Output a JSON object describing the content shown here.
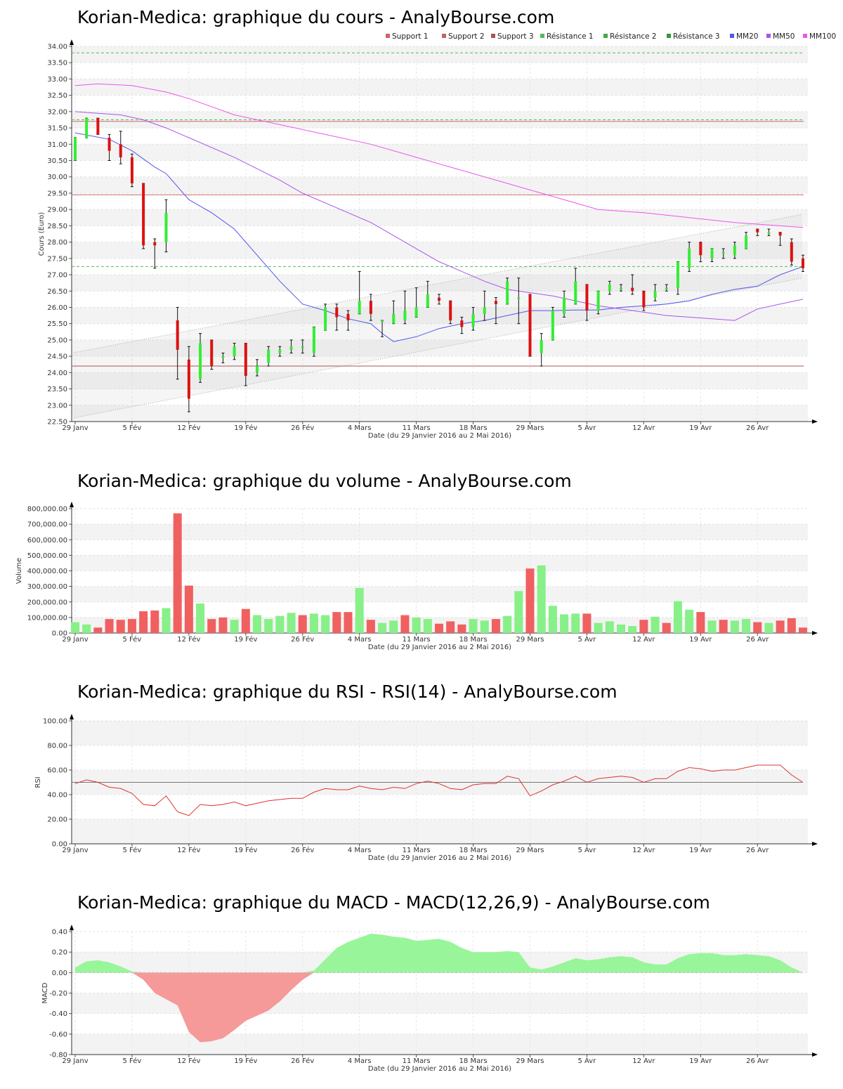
{
  "titles": {
    "price": "Korian-Medica: graphique du cours - AnalyBourse.com",
    "volume": "Korian-Medica: graphique du volume - AnalyBourse.com",
    "rsi": "Korian-Medica: graphique du RSI - RSI(14) - AnalyBourse.com",
    "macd": "Korian-Medica: graphique du MACD - MACD(12,26,9) - AnalyBourse.com"
  },
  "xlabel": "Date (du 29 Janvier 2016 au 2 Mai 2016)",
  "colors": {
    "up": "#33ee33",
    "down": "#dd1111",
    "vol_up": "#88f088",
    "vol_down": "#f06060",
    "support": "#cc6666",
    "resistance": "#55bb55",
    "mm20": "#5555ee",
    "mm50": "#aa55ee",
    "mm100": "#ee55ee",
    "rsi": "#dd3333",
    "macd_pos": "#99f599",
    "macd_neg": "#f59999"
  },
  "chart_data": [
    {
      "id": "price",
      "type": "candlestick",
      "title": "Korian-Medica: graphique du cours - AnalyBourse.com",
      "xlabel": "Date (du 29 Janvier 2016 au 2 Mai 2016)",
      "ylabel": "Cours (Euro)",
      "ylim": [
        22.5,
        34.0
      ],
      "yticks": [
        "22.50",
        "23.00",
        "23.50",
        "24.00",
        "24.50",
        "25.00",
        "25.50",
        "26.00",
        "26.50",
        "27.00",
        "27.50",
        "28.00",
        "28.50",
        "29.00",
        "29.50",
        "30.00",
        "30.50",
        "31.00",
        "31.50",
        "32.00",
        "32.50",
        "33.00",
        "33.50",
        "34.00"
      ],
      "xticks": [
        "29 Janv",
        "5 Fév",
        "12 Fév",
        "19 Fév",
        "26 Fév",
        "4 Mars",
        "11 Mars",
        "18 Mars",
        "29 Mars",
        "5 Avr",
        "12 Avr",
        "19 Avr",
        "26 Avr"
      ],
      "xtick_index": [
        0,
        5,
        10,
        15,
        20,
        25,
        30,
        35,
        40,
        45,
        50,
        55,
        60
      ],
      "legend": [
        "Support 1",
        "Support 2",
        "Support 3",
        "Résistance 1",
        "Résistance 2",
        "Résistance 3",
        "MM20",
        "MM50",
        "MM100"
      ],
      "legend_position": "top-right",
      "candles": [
        {
          "o": 30.5,
          "c": 31.2,
          "h": 31.2,
          "l": 30.5
        },
        {
          "o": 31.2,
          "c": 31.8,
          "h": 31.8,
          "l": 31.2
        },
        {
          "o": 31.8,
          "c": 31.3,
          "h": 31.8,
          "l": 31.3
        },
        {
          "o": 31.2,
          "c": 30.8,
          "h": 31.3,
          "l": 30.5
        },
        {
          "o": 31.0,
          "c": 30.6,
          "h": 31.4,
          "l": 30.4
        },
        {
          "o": 30.6,
          "c": 29.8,
          "h": 30.7,
          "l": 29.7
        },
        {
          "o": 29.8,
          "c": 27.9,
          "h": 29.8,
          "l": 27.8
        },
        {
          "o": 28.0,
          "c": 27.9,
          "h": 28.1,
          "l": 27.2
        },
        {
          "o": 28.0,
          "c": 28.9,
          "h": 29.3,
          "l": 27.7
        },
        {
          "o": 25.6,
          "c": 24.7,
          "h": 26.0,
          "l": 23.8
        },
        {
          "o": 24.4,
          "c": 23.2,
          "h": 24.8,
          "l": 22.8
        },
        {
          "o": 23.8,
          "c": 24.9,
          "h": 25.2,
          "l": 23.7
        },
        {
          "o": 25.0,
          "c": 24.2,
          "h": 25.0,
          "l": 24.1
        },
        {
          "o": 24.5,
          "c": 24.5,
          "h": 24.6,
          "l": 24.3
        },
        {
          "o": 24.5,
          "c": 24.8,
          "h": 24.9,
          "l": 24.4
        },
        {
          "o": 24.9,
          "c": 23.9,
          "h": 24.9,
          "l": 23.6
        },
        {
          "o": 24.0,
          "c": 24.2,
          "h": 24.4,
          "l": 23.9
        },
        {
          "o": 24.3,
          "c": 24.7,
          "h": 24.8,
          "l": 24.2
        },
        {
          "o": 24.6,
          "c": 24.7,
          "h": 24.8,
          "l": 24.5
        },
        {
          "o": 24.7,
          "c": 24.8,
          "h": 25.0,
          "l": 24.6
        },
        {
          "o": 24.8,
          "c": 24.8,
          "h": 25.0,
          "l": 24.6
        },
        {
          "o": 24.6,
          "c": 25.4,
          "h": 25.4,
          "l": 24.5
        },
        {
          "o": 25.3,
          "c": 26.0,
          "h": 26.1,
          "l": 25.3
        },
        {
          "o": 26.0,
          "c": 25.7,
          "h": 26.1,
          "l": 25.3
        },
        {
          "o": 25.8,
          "c": 25.6,
          "h": 25.9,
          "l": 25.3
        },
        {
          "o": 25.8,
          "c": 26.2,
          "h": 27.1,
          "l": 25.8
        },
        {
          "o": 26.2,
          "c": 25.8,
          "h": 26.4,
          "l": 25.6
        },
        {
          "o": 25.6,
          "c": 25.6,
          "h": 25.6,
          "l": 25.1
        },
        {
          "o": 25.5,
          "c": 25.8,
          "h": 26.2,
          "l": 25.5
        },
        {
          "o": 25.6,
          "c": 25.9,
          "h": 26.5,
          "l": 25.5
        },
        {
          "o": 25.7,
          "c": 26.0,
          "h": 26.6,
          "l": 25.7
        },
        {
          "o": 26.0,
          "c": 26.4,
          "h": 26.8,
          "l": 26.0
        },
        {
          "o": 26.3,
          "c": 26.2,
          "h": 26.4,
          "l": 26.1
        },
        {
          "o": 26.2,
          "c": 25.6,
          "h": 26.2,
          "l": 25.5
        },
        {
          "o": 25.6,
          "c": 25.4,
          "h": 25.7,
          "l": 25.2
        },
        {
          "o": 25.4,
          "c": 25.8,
          "h": 26.0,
          "l": 25.3
        },
        {
          "o": 25.8,
          "c": 26.0,
          "h": 26.5,
          "l": 25.6
        },
        {
          "o": 26.2,
          "c": 26.1,
          "h": 26.3,
          "l": 25.5
        },
        {
          "o": 26.1,
          "c": 26.8,
          "h": 26.9,
          "l": 26.1
        },
        {
          "o": 26.3,
          "c": 26.3,
          "h": 26.9,
          "l": 25.5
        },
        {
          "o": 26.4,
          "c": 24.5,
          "h": 26.4,
          "l": 24.5
        },
        {
          "o": 24.6,
          "c": 25.0,
          "h": 25.2,
          "l": 24.2
        },
        {
          "o": 25.0,
          "c": 25.9,
          "h": 26.0,
          "l": 25.0
        },
        {
          "o": 25.8,
          "c": 26.3,
          "h": 26.5,
          "l": 25.7
        },
        {
          "o": 26.1,
          "c": 26.8,
          "h": 27.2,
          "l": 26.1
        },
        {
          "o": 26.7,
          "c": 25.9,
          "h": 26.7,
          "l": 25.6
        },
        {
          "o": 25.9,
          "c": 26.5,
          "h": 26.5,
          "l": 25.8
        },
        {
          "o": 26.5,
          "c": 26.7,
          "h": 26.8,
          "l": 26.4
        },
        {
          "o": 26.6,
          "c": 26.6,
          "h": 26.7,
          "l": 26.5
        },
        {
          "o": 26.6,
          "c": 26.5,
          "h": 27.0,
          "l": 26.4
        },
        {
          "o": 26.5,
          "c": 26.0,
          "h": 26.5,
          "l": 25.9
        },
        {
          "o": 26.3,
          "c": 26.5,
          "h": 26.7,
          "l": 26.2
        },
        {
          "o": 26.6,
          "c": 26.6,
          "h": 26.7,
          "l": 26.5
        },
        {
          "o": 26.6,
          "c": 27.4,
          "h": 27.4,
          "l": 26.4
        },
        {
          "o": 27.2,
          "c": 27.8,
          "h": 28.0,
          "l": 27.1
        },
        {
          "o": 28.0,
          "c": 27.6,
          "h": 28.0,
          "l": 27.4
        },
        {
          "o": 27.5,
          "c": 27.8,
          "h": 27.8,
          "l": 27.4
        },
        {
          "o": 27.7,
          "c": 27.7,
          "h": 27.8,
          "l": 27.5
        },
        {
          "o": 27.6,
          "c": 27.9,
          "h": 28.0,
          "l": 27.5
        },
        {
          "o": 27.8,
          "c": 28.2,
          "h": 28.3,
          "l": 27.8
        },
        {
          "o": 28.4,
          "c": 28.3,
          "h": 28.4,
          "l": 28.2
        },
        {
          "o": 28.3,
          "c": 28.3,
          "h": 28.4,
          "l": 28.2
        },
        {
          "o": 28.3,
          "c": 28.2,
          "h": 28.3,
          "l": 27.9
        },
        {
          "o": 28.0,
          "c": 27.4,
          "h": 28.1,
          "l": 27.3
        },
        {
          "o": 27.5,
          "c": 27.2,
          "h": 27.6,
          "l": 27.1
        }
      ],
      "levels": [
        {
          "name": "Support 1",
          "value": 31.7,
          "color": "#cc6666",
          "style": "solid"
        },
        {
          "name": "Support 2",
          "value": 29.45,
          "color": "#cc6666",
          "style": "solid"
        },
        {
          "name": "Support 3",
          "value": 24.2,
          "color": "#aa5555",
          "style": "solid"
        },
        {
          "name": "Résistance 1",
          "value": 33.8,
          "color": "#55bb55",
          "style": "dash"
        },
        {
          "name": "Résistance 2",
          "value": 31.75,
          "color": "#55bb55",
          "style": "dash"
        },
        {
          "name": "Résistance 3",
          "value": 27.25,
          "color": "#55bb55",
          "style": "dash"
        }
      ],
      "channel": {
        "upper": [
          24.6,
          28.85
        ],
        "lower": [
          22.6,
          26.9
        ]
      },
      "mm20": [
        [
          0,
          31.35
        ],
        [
          3,
          31.15
        ],
        [
          5,
          30.8
        ],
        [
          7,
          30.3
        ],
        [
          8,
          30.1
        ],
        [
          10,
          29.3
        ],
        [
          12,
          28.9
        ],
        [
          14,
          28.4
        ],
        [
          16,
          27.6
        ],
        [
          18,
          26.8
        ],
        [
          20,
          26.1
        ],
        [
          22,
          25.9
        ],
        [
          24,
          25.65
        ],
        [
          26,
          25.5
        ],
        [
          27,
          25.2
        ],
        [
          28,
          24.95
        ],
        [
          30,
          25.1
        ],
        [
          32,
          25.35
        ],
        [
          34,
          25.5
        ],
        [
          36,
          25.6
        ],
        [
          38,
          25.75
        ],
        [
          40,
          25.9
        ],
        [
          42,
          25.9
        ],
        [
          44,
          25.92
        ],
        [
          46,
          25.92
        ],
        [
          48,
          26.0
        ],
        [
          50,
          26.05
        ],
        [
          52,
          26.1
        ],
        [
          54,
          26.2
        ],
        [
          56,
          26.4
        ],
        [
          58,
          26.55
        ],
        [
          60,
          26.65
        ],
        [
          62,
          27.0
        ],
        [
          64,
          27.25
        ]
      ],
      "mm50": [
        [
          0,
          32.0
        ],
        [
          4,
          31.9
        ],
        [
          6,
          31.75
        ],
        [
          8,
          31.5
        ],
        [
          10,
          31.2
        ],
        [
          14,
          30.6
        ],
        [
          18,
          29.9
        ],
        [
          20,
          29.5
        ],
        [
          24,
          28.9
        ],
        [
          26,
          28.6
        ],
        [
          28,
          28.2
        ],
        [
          30,
          27.8
        ],
        [
          32,
          27.4
        ],
        [
          34,
          27.1
        ],
        [
          36,
          26.8
        ],
        [
          38,
          26.55
        ],
        [
          40,
          26.45
        ],
        [
          42,
          26.35
        ],
        [
          44,
          26.2
        ],
        [
          46,
          26.05
        ],
        [
          48,
          25.95
        ],
        [
          50,
          25.85
        ],
        [
          52,
          25.75
        ],
        [
          54,
          25.7
        ],
        [
          56,
          25.65
        ],
        [
          58,
          25.6
        ],
        [
          60,
          25.95
        ],
        [
          62,
          26.1
        ],
        [
          64,
          26.25
        ]
      ],
      "mm100": [
        [
          0,
          32.8
        ],
        [
          2,
          32.85
        ],
        [
          5,
          32.8
        ],
        [
          8,
          32.6
        ],
        [
          10,
          32.4
        ],
        [
          14,
          31.9
        ],
        [
          18,
          31.6
        ],
        [
          22,
          31.3
        ],
        [
          26,
          31.0
        ],
        [
          30,
          30.6
        ],
        [
          34,
          30.2
        ],
        [
          38,
          29.8
        ],
        [
          42,
          29.4
        ],
        [
          46,
          29.0
        ],
        [
          50,
          28.9
        ],
        [
          54,
          28.75
        ],
        [
          58,
          28.6
        ],
        [
          62,
          28.5
        ],
        [
          64,
          28.45
        ]
      ]
    },
    {
      "id": "volume",
      "type": "bar",
      "title": "Korian-Medica: graphique du volume - AnalyBourse.com",
      "xlabel": "Date (du 29 Janvier 2016 au 2 Mai 2016)",
      "ylabel": "Volume",
      "ylim": [
        0,
        800000
      ],
      "yticks": [
        "0.00",
        "100,000.00",
        "200,000.00",
        "300,000.00",
        "400,000.00",
        "500,000.00",
        "600,000.00",
        "700,000.00",
        "800,000.00"
      ],
      "xticks": [
        "29 Janv",
        "5 Fév",
        "12 Fév",
        "19 Fév",
        "26 Fév",
        "4 Mars",
        "11 Mars",
        "18 Mars",
        "29 Mars",
        "5 Avr",
        "12 Avr",
        "19 Avr",
        "26 Avr"
      ],
      "values": [
        70000,
        55000,
        35000,
        90000,
        85000,
        90000,
        140000,
        145000,
        160000,
        770000,
        305000,
        190000,
        90000,
        100000,
        85000,
        155000,
        115000,
        90000,
        110000,
        130000,
        115000,
        125000,
        115000,
        135000,
        135000,
        290000,
        85000,
        65000,
        80000,
        115000,
        100000,
        90000,
        60000,
        75000,
        55000,
        90000,
        80000,
        90000,
        110000,
        270000,
        415000,
        435000,
        175000,
        120000,
        125000,
        125000,
        65000,
        75000,
        55000,
        45000,
        85000,
        105000,
        65000,
        205000,
        150000,
        135000,
        80000,
        85000,
        80000,
        90000,
        70000,
        65000,
        80000,
        95000,
        35000
      ],
      "up": [
        1,
        1,
        0,
        0,
        0,
        0,
        0,
        0,
        1,
        0,
        0,
        1,
        0,
        0,
        1,
        0,
        1,
        1,
        1,
        1,
        0,
        1,
        1,
        0,
        0,
        1,
        0,
        1,
        1,
        0,
        1,
        1,
        0,
        0,
        0,
        1,
        1,
        0,
        1,
        1,
        0,
        1,
        1,
        1,
        1,
        0,
        1,
        1,
        1,
        1,
        0,
        1,
        0,
        1,
        1,
        0,
        1,
        0,
        1,
        1,
        0,
        1,
        0,
        0,
        0
      ]
    },
    {
      "id": "rsi",
      "type": "line",
      "title": "Korian-Medica: graphique du RSI - RSI(14) - AnalyBourse.com",
      "xlabel": "Date (du 29 Janvier 2016 au 2 Mai 2016)",
      "ylabel": "RSI",
      "ylim": [
        0,
        100
      ],
      "yticks": [
        "0.00",
        "20.00",
        "40.00",
        "60.00",
        "80.00",
        "100.00"
      ],
      "xticks": [
        "29 Janv",
        "5 Fév",
        "12 Fév",
        "19 Fév",
        "26 Fév",
        "4 Mars",
        "11 Mars",
        "18 Mars",
        "29 Mars",
        "5 Avr",
        "12 Avr",
        "19 Avr",
        "26 Avr"
      ],
      "reference": 50,
      "values": [
        49,
        52,
        50,
        46,
        45,
        41,
        32,
        31,
        39,
        26,
        23,
        32,
        31,
        32,
        34,
        31,
        33,
        35,
        36,
        37,
        37,
        42,
        45,
        44,
        44,
        47,
        45,
        44,
        46,
        45,
        49,
        51,
        49,
        45,
        44,
        48,
        49,
        49,
        55,
        53,
        39,
        43,
        48,
        51,
        55,
        50,
        53,
        54,
        55,
        54,
        50,
        53,
        53,
        59,
        62,
        61,
        59,
        60,
        60,
        62,
        64,
        64,
        64,
        56,
        50
      ]
    },
    {
      "id": "macd",
      "type": "area",
      "title": "Korian-Medica: graphique du MACD - MACD(12,26,9) - AnalyBourse.com",
      "xlabel": "Date (du 29 Janvier 2016 au 2 Mai 2016)",
      "ylabel": "MACD",
      "ylim": [
        -0.8,
        0.4
      ],
      "yticks": [
        "-0.80",
        "-0.60",
        "-0.40",
        "-0.20",
        "0.00",
        "0.20",
        "0.40"
      ],
      "xticks": [
        "29 Janv",
        "5 Fév",
        "12 Fév",
        "19 Fév",
        "26 Fév",
        "4 Mars",
        "11 Mars",
        "18 Mars",
        "29 Mars",
        "5 Avr",
        "12 Avr",
        "19 Avr",
        "26 Avr"
      ],
      "values": [
        0.05,
        0.11,
        0.12,
        0.1,
        0.06,
        0.01,
        -0.07,
        -0.2,
        -0.26,
        -0.32,
        -0.58,
        -0.68,
        -0.67,
        -0.64,
        -0.56,
        -0.47,
        -0.42,
        -0.37,
        -0.28,
        -0.17,
        -0.07,
        0.02,
        0.13,
        0.24,
        0.3,
        0.34,
        0.38,
        0.37,
        0.35,
        0.34,
        0.31,
        0.32,
        0.33,
        0.3,
        0.24,
        0.2,
        0.2,
        0.2,
        0.21,
        0.2,
        0.05,
        0.03,
        0.06,
        0.1,
        0.14,
        0.12,
        0.13,
        0.15,
        0.16,
        0.15,
        0.1,
        0.08,
        0.08,
        0.14,
        0.18,
        0.19,
        0.19,
        0.17,
        0.17,
        0.18,
        0.17,
        0.16,
        0.12,
        0.05,
        0.0
      ]
    }
  ]
}
